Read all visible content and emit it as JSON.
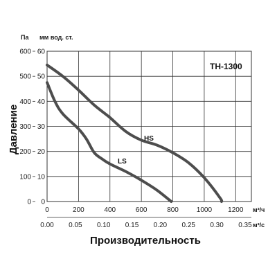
{
  "chart_data": {
    "type": "line",
    "title": "TH-1300",
    "xlabel": "Производительность",
    "ylabel": "Давление",
    "y_units": [
      "Па",
      "мм вод. ст."
    ],
    "x_units": [
      "м³/ч",
      "м³/с"
    ],
    "x_ticks_m3h": [
      "0",
      "200",
      "400",
      "600",
      "800",
      "1000",
      "1200"
    ],
    "x_ticks_m3s": [
      "0.00",
      "0.05",
      "0.10",
      "0.15",
      "0.20",
      "0.25",
      "0.30",
      "0.35"
    ],
    "y_ticks_pa": [
      "0",
      "100",
      "200",
      "300",
      "400",
      "500",
      "600"
    ],
    "y_ticks_mm": [
      "0",
      "10",
      "20",
      "30",
      "40",
      "50",
      "60"
    ],
    "xlim": [
      0,
      1300
    ],
    "ylim": [
      0,
      600
    ],
    "grid": true,
    "series": [
      {
        "name": "HS",
        "x": [
          0,
          100,
          200,
          300,
          400,
          500,
          600,
          700,
          800,
          900,
          1000,
          1100,
          1110
        ],
        "y": [
          545,
          500,
          445,
          385,
          335,
          280,
          245,
          225,
          195,
          155,
          95,
          15,
          0
        ]
      },
      {
        "name": "LS",
        "x": [
          0,
          50,
          100,
          200,
          250,
          300,
          350,
          400,
          500,
          600,
          700,
          790
        ],
        "y": [
          475,
          400,
          350,
          290,
          250,
          195,
          170,
          150,
          120,
          85,
          45,
          0
        ]
      }
    ]
  },
  "colors": {
    "curve": "#4d4d4d",
    "grid": "#333333",
    "text": "#1a1a1a"
  }
}
